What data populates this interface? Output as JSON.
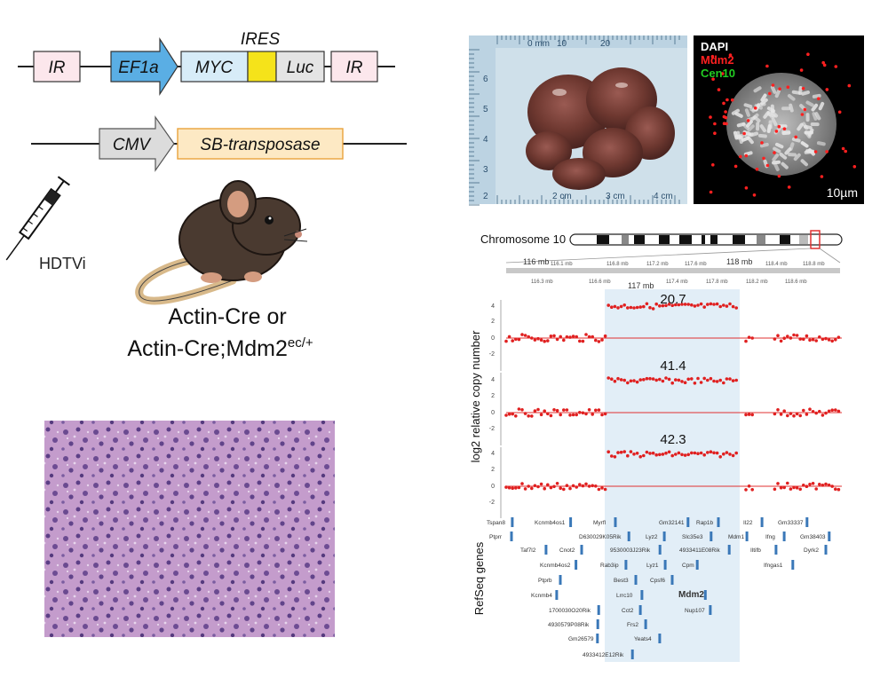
{
  "constructs": {
    "ires_label": "IRES",
    "transposon": [
      "IR",
      "EF1a",
      "MYC",
      "Luc",
      "IR"
    ],
    "transposase": [
      "CMV",
      "SB-transposase"
    ]
  },
  "injection": {
    "method": "HDTVi",
    "genotype_line1": "Actin-Cre or",
    "genotype_line2": "Actin-Cre;Mdm2",
    "genotype_sup": "ec/+"
  },
  "tumor_photo": {
    "ruler_top_labels": [
      "0 mm",
      "10",
      "20"
    ],
    "ruler_bottom_labels": [
      "2 cm",
      "3 cm",
      "4 cm"
    ],
    "ruler_left_labels": [
      "6",
      "5",
      "4",
      "3",
      "2"
    ]
  },
  "fish": {
    "labels": [
      {
        "text": "DAPI",
        "color": "#ffffff"
      },
      {
        "text": "Mdm2",
        "color": "#ff2020"
      },
      {
        "text": "Cen10",
        "color": "#22cc22"
      }
    ],
    "scale_bar": "10µm"
  },
  "cnv": {
    "chromosome_label": "Chromosome 10",
    "ruler_major": [
      "116 mb",
      "117 mb",
      "118 mb"
    ],
    "ruler_minor_top": [
      "116.1 mb",
      "116.8 mb",
      "117.2 mb",
      "117.6 mb",
      "118.4 mb",
      "118.8 mb"
    ],
    "ruler_minor_bottom": [
      "116.3 mb",
      "116.6 mb",
      "117.4 mb",
      "117.8 mb",
      "118.2 mb",
      "118.6 mb"
    ],
    "y_axis_label": "log2 relative copy number",
    "y_ticks": [
      "4",
      "2",
      "0",
      "-2"
    ],
    "tracks": [
      {
        "label": "20.7"
      },
      {
        "label": "41.4"
      },
      {
        "label": "42.3"
      }
    ],
    "genes_label": "RefSeq genes",
    "genes": [
      "Tspan8",
      "Kcnmb4os1",
      "Myrfl",
      "Gm32141",
      "Rap1b",
      "Il22",
      "Gm33337",
      "Ptprr",
      "D630029K05Rik",
      "Lyz2",
      "Slc35e3",
      "Mdm1",
      "Ifng",
      "Gm38403",
      "Taf7l2",
      "Cnot2",
      "9530003J23Rik",
      "4933411E08Rik",
      "Iltifb",
      "Dyrk2",
      "Kcnmb4os2",
      "Rab3ip",
      "Lyz1",
      "Cpm",
      "Ifngas1",
      "Ptprb",
      "Best3",
      "Cpsf6",
      "Kcnmb4",
      "Lrrc10",
      "Mdm2",
      "1700030O20Rik",
      "Cct2",
      "Nup107",
      "4930579P08Rik",
      "Frs2",
      "Gm26579",
      "Yeats4",
      "4933412E12Rik"
    ]
  }
}
